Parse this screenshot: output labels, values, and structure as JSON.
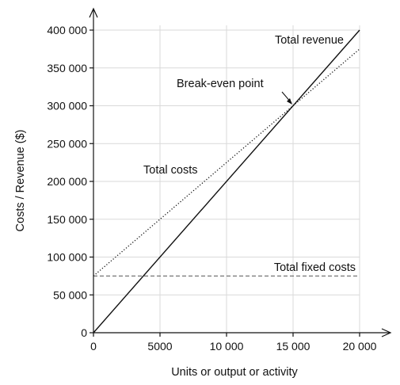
{
  "chart_data": {
    "type": "line",
    "xlabel": "Units or output or activity",
    "ylabel": "Costs / Revenue ($)",
    "xlim": [
      0,
      20000
    ],
    "ylim": [
      0,
      400000
    ],
    "x_ticks": [
      0,
      5000,
      10000,
      15000,
      20000
    ],
    "x_tick_labels": [
      "0",
      "5000",
      "10 000",
      "15 000",
      "20 000"
    ],
    "y_ticks": [
      0,
      50000,
      100000,
      150000,
      200000,
      250000,
      300000,
      350000,
      400000
    ],
    "y_tick_labels": [
      "0",
      "50 000",
      "100 000",
      "150 000",
      "200 000",
      "250 000",
      "300 000",
      "350 000",
      "400 000"
    ],
    "grid": true,
    "series": [
      {
        "name": "Total revenue",
        "style": "solid",
        "color": "#111111",
        "x": [
          0,
          20000
        ],
        "y": [
          0,
          400000
        ]
      },
      {
        "name": "Total costs",
        "style": "dotted",
        "color": "#111111",
        "x": [
          0,
          20000
        ],
        "y": [
          75000,
          375000
        ]
      },
      {
        "name": "Total fixed costs",
        "style": "dashed",
        "color": "#555555",
        "x": [
          0,
          20000
        ],
        "y": [
          75000,
          75000
        ]
      }
    ],
    "annotations": [
      {
        "text": "Break-even point",
        "x": 15000,
        "y": 300000,
        "arrow": true
      }
    ]
  }
}
